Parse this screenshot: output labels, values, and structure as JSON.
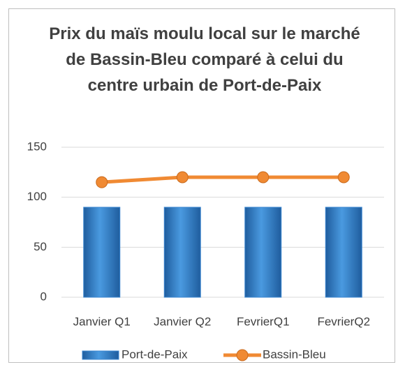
{
  "chart_data": {
    "type": "bar",
    "title": "Prix du maïs moulu local sur le marché de Bassin-Bleu comparé à celui du centre urbain de Port-de-Paix",
    "categories": [
      "Janvier Q1",
      "Janvier Q2",
      "FevrierQ1",
      "FevrierQ2"
    ],
    "series": [
      {
        "name": "Port-de-Paix",
        "type": "bar",
        "color": "#3a86d0",
        "values": [
          90,
          90,
          90,
          90
        ]
      },
      {
        "name": "Bassin-Bleu",
        "type": "line",
        "color": "#f08a33",
        "values": [
          115,
          120,
          120,
          120
        ]
      }
    ],
    "ylim": [
      0,
      150
    ],
    "yticks": [
      0,
      50,
      100,
      150
    ],
    "grid": true,
    "legend": "bottom"
  }
}
